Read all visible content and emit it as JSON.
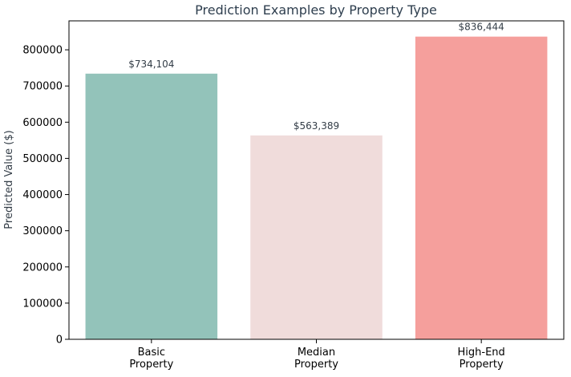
{
  "chart_data": {
    "type": "bar",
    "title": "Prediction Examples by Property Type",
    "xlabel": "",
    "ylabel": "Predicted Value ($)",
    "categories": [
      [
        "Basic",
        "Property"
      ],
      [
        "Median",
        "Property"
      ],
      [
        "High-End",
        "Property"
      ]
    ],
    "values": [
      734104,
      563389,
      836444
    ],
    "value_labels": [
      "$734,104",
      "$563,389",
      "$836,444"
    ],
    "colors": [
      "#93c3ba",
      "#f0dcdb",
      "#f59f9c"
    ],
    "ylim": [
      0,
      880000
    ],
    "yticks": [
      0,
      100000,
      200000,
      300000,
      400000,
      500000,
      600000,
      700000,
      800000
    ],
    "ytick_labels": [
      "0",
      "100000",
      "200000",
      "300000",
      "400000",
      "500000",
      "600000",
      "700000",
      "800000"
    ],
    "grid": false,
    "legend": "none"
  }
}
